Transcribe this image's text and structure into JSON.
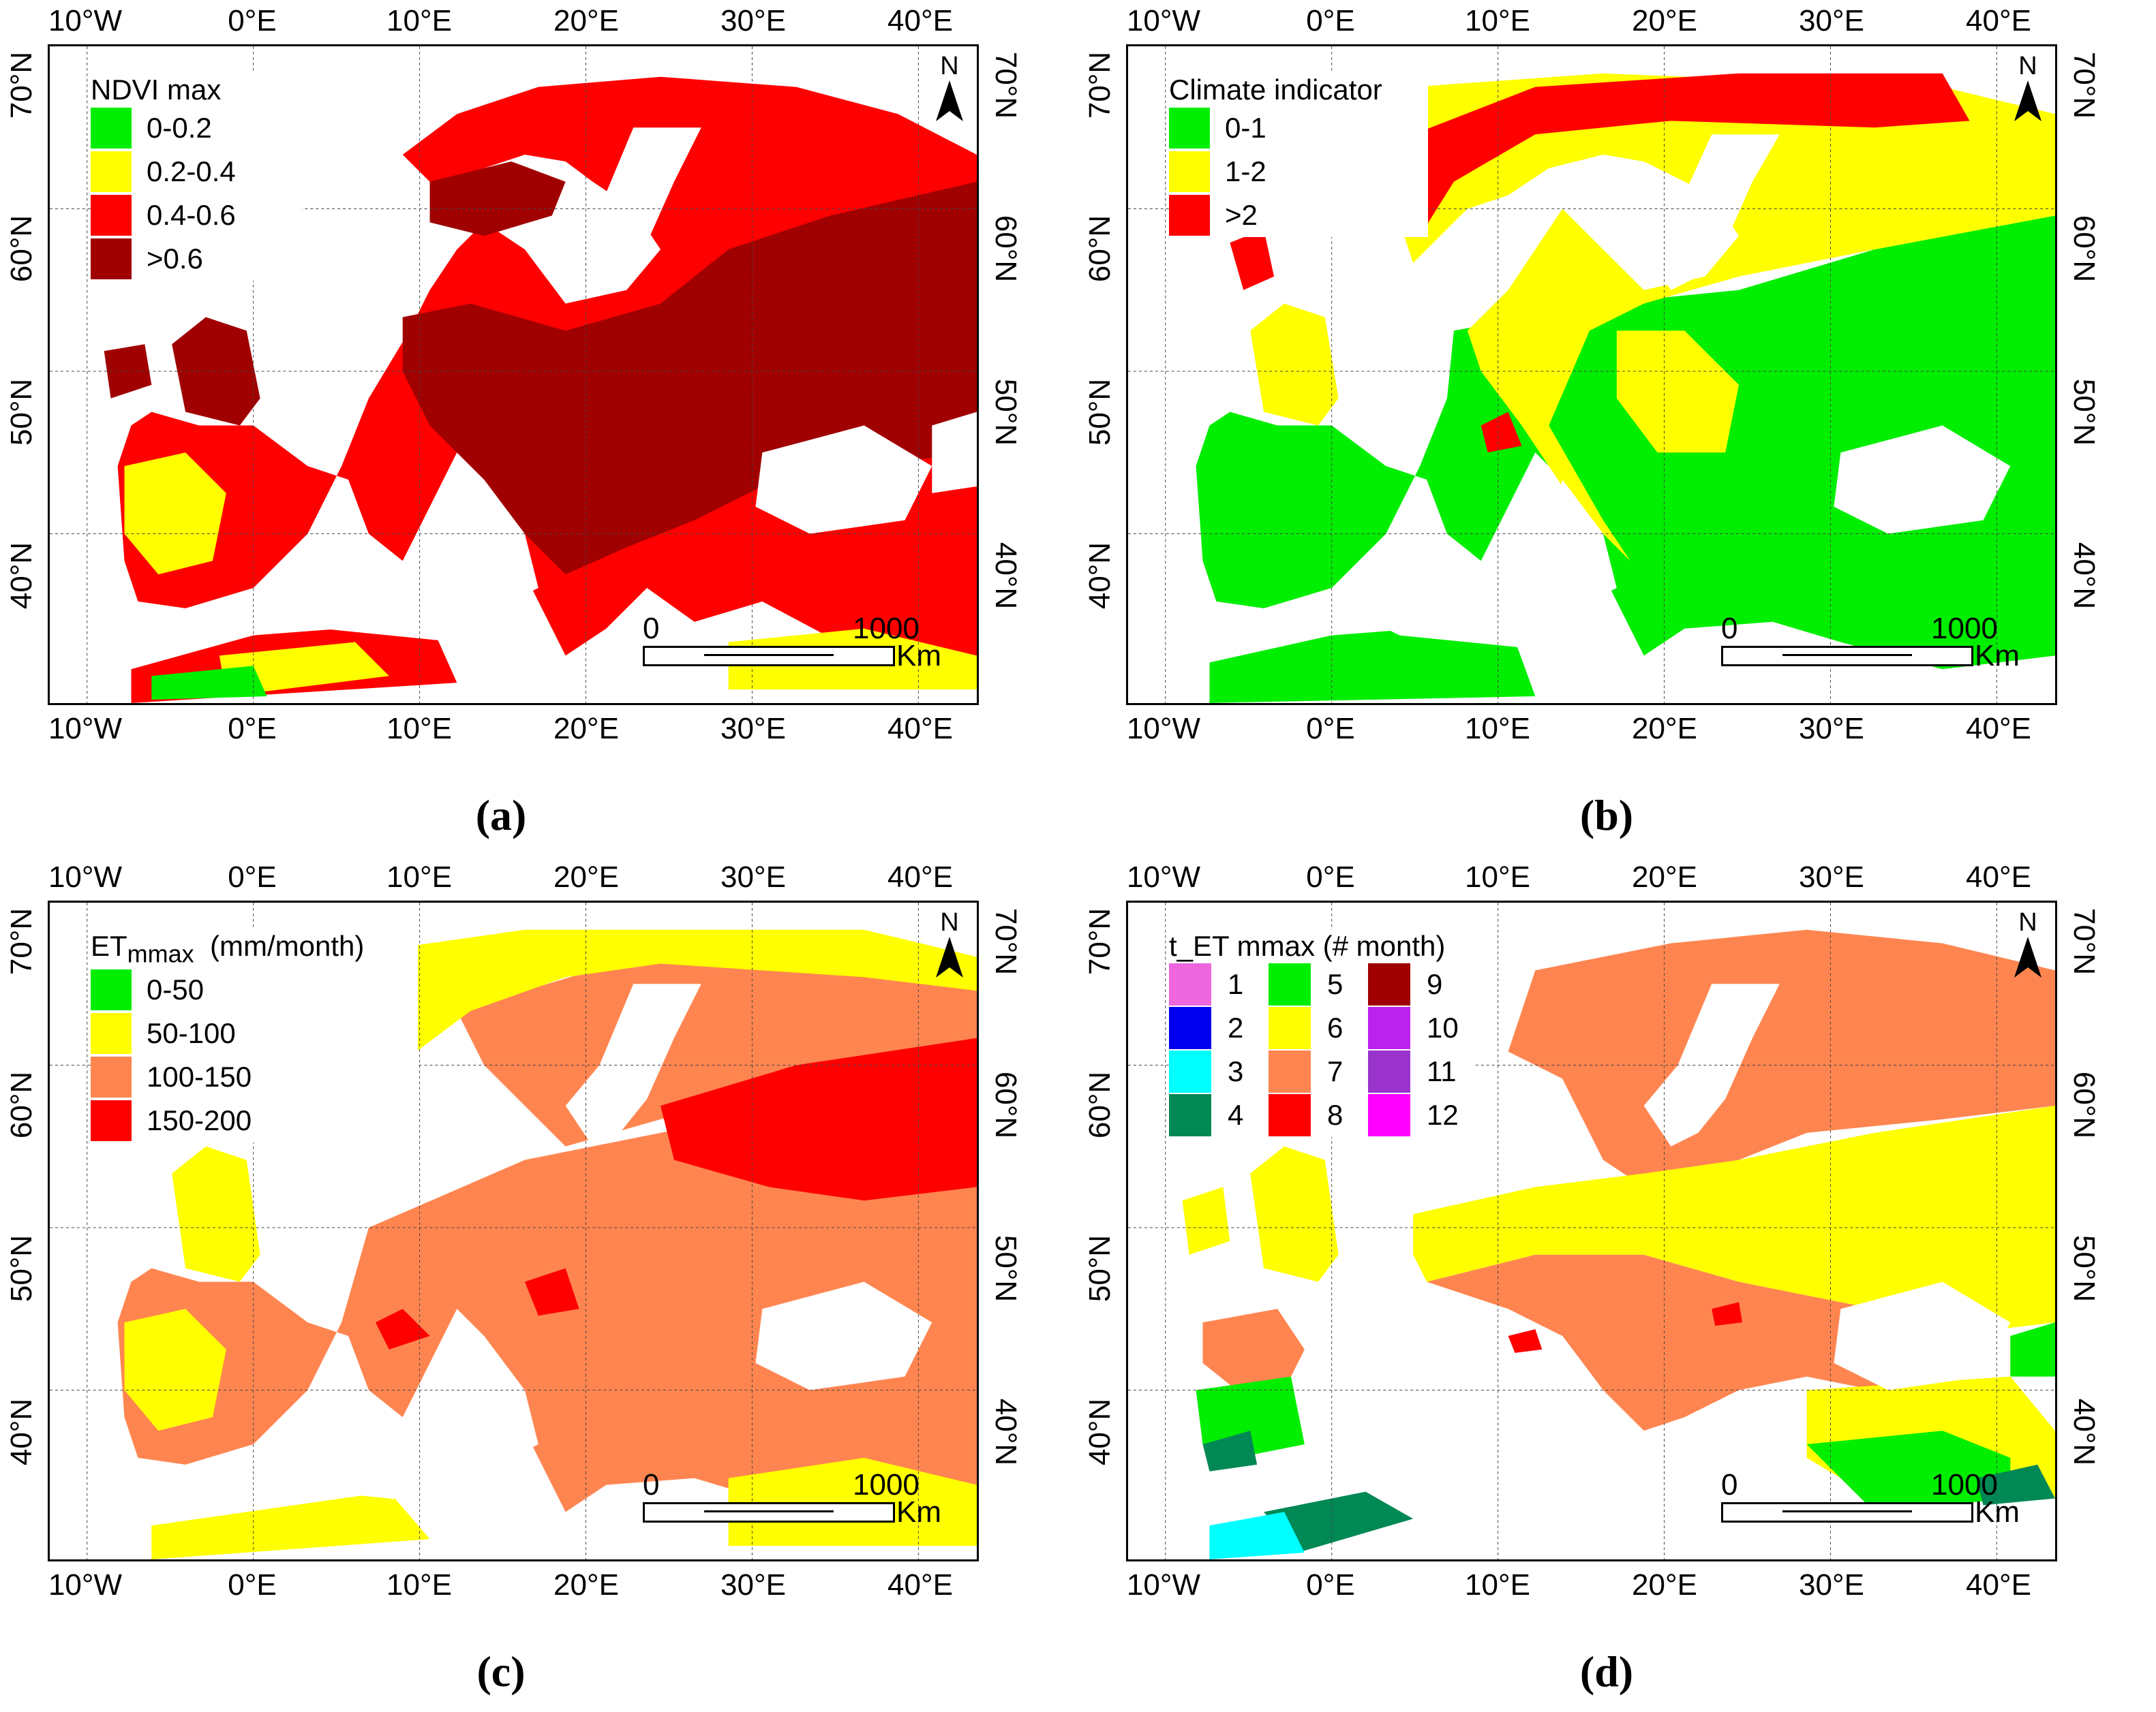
{
  "axes": {
    "lon_ticks": [
      "10°W",
      "0°E",
      "10°E",
      "20°E",
      "30°E",
      "40°E"
    ],
    "lat_ticks": [
      "70°N",
      "60°N",
      "50°N",
      "40°N"
    ]
  },
  "north_arrow": {
    "label": "N"
  },
  "scale_bar": {
    "start": "0",
    "end": "1000",
    "unit": "Km"
  },
  "panels": [
    {
      "id": "a",
      "label": "(a)",
      "legend": {
        "title": "NDVI max",
        "items": [
          {
            "label": "0-0.2",
            "color": "#00ee00"
          },
          {
            "label": "0.2-0.4",
            "color": "#ffff00"
          },
          {
            "label": "0.4-0.6",
            "color": "#ff0000"
          },
          {
            "label": ">0.6",
            "color": "#a00000"
          }
        ]
      }
    },
    {
      "id": "b",
      "label": "(b)",
      "legend": {
        "title": "Climate indicator",
        "items": [
          {
            "label": "0-1",
            "color": "#00ee00"
          },
          {
            "label": "1-2",
            "color": "#ffff00"
          },
          {
            "label": ">2",
            "color": "#ff0000"
          }
        ]
      }
    },
    {
      "id": "c",
      "label": "(c)",
      "legend": {
        "title": "ET",
        "title_sub": "mmax",
        "title_unit": "(mm/month)",
        "items": [
          {
            "label": "0-50",
            "color": "#00ee00"
          },
          {
            "label": "50-100",
            "color": "#ffff00"
          },
          {
            "label": "100-150",
            "color": "#ff8550"
          },
          {
            "label": "150-200",
            "color": "#ff0000"
          }
        ]
      }
    },
    {
      "id": "d",
      "label": "(d)",
      "legend": {
        "title": "t_ET mmax (# month)",
        "items": [
          {
            "label": "1",
            "color": "#ee66dd"
          },
          {
            "label": "5",
            "color": "#00ee00"
          },
          {
            "label": "9",
            "color": "#a00000"
          },
          {
            "label": "2",
            "color": "#0000ee"
          },
          {
            "label": "6",
            "color": "#ffff00"
          },
          {
            "label": "10",
            "color": "#bb22ee"
          },
          {
            "label": "3",
            "color": "#00ffff"
          },
          {
            "label": "7",
            "color": "#ff8550"
          },
          {
            "label": "11",
            "color": "#9933cc"
          },
          {
            "label": "4",
            "color": "#008855"
          },
          {
            "label": "8",
            "color": "#ff0000"
          },
          {
            "label": "12",
            "color": "#ff00ff"
          }
        ]
      }
    }
  ]
}
